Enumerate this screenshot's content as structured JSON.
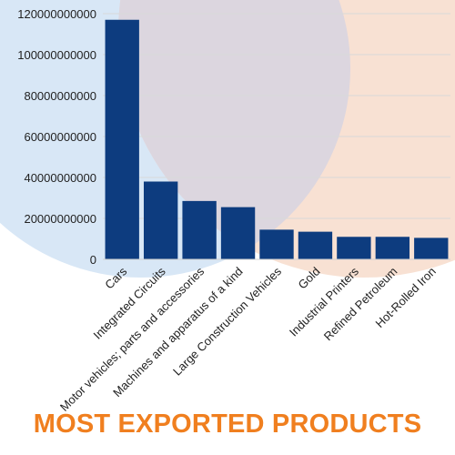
{
  "colors": {
    "bar": "#0d3c7f",
    "title": "#f07f1f",
    "circle_blue": "#d8e7f6",
    "circle_orange": "#f7dccb",
    "circle_overlap": "#dcd6df"
  },
  "title": "MOST EXPORTED PRODUCTS",
  "chart_data": {
    "type": "bar",
    "title": "MOST EXPORTED PRODUCTS",
    "xlabel": "",
    "ylabel": "",
    "categories": [
      "Cars",
      "Integrated Circuits",
      "Motor vehicles; parts and accessories",
      "Machines and apparatus of a kind",
      "Large Construction Vehicles",
      "Gold",
      "Industrial Printers",
      "Refined Petroleum",
      "Hot-Rolled Iron"
    ],
    "values": [
      117000000000,
      38000000000,
      28500000000,
      25500000000,
      14500000000,
      13500000000,
      11000000000,
      11000000000,
      10500000000
    ],
    "ylim": [
      0,
      120000000000
    ],
    "yticks": [
      {
        "value": 0,
        "label": "0"
      },
      {
        "value": 20000000000,
        "label": "20000000000"
      },
      {
        "value": 40000000000,
        "label": "40000000000"
      },
      {
        "value": 60000000000,
        "label": "60000000000"
      },
      {
        "value": 80000000000,
        "label": "80000000000"
      },
      {
        "value": 100000000000,
        "label": "100000000000"
      },
      {
        "value": 120000000000,
        "label": "120000000000"
      }
    ],
    "grid": true,
    "legend": "none"
  }
}
